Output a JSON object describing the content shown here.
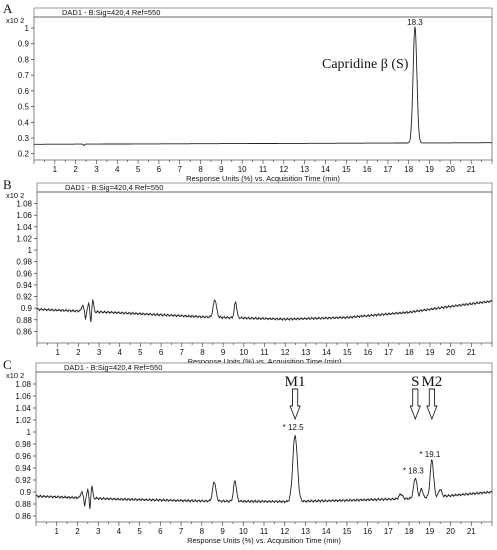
{
  "chart_data": [
    {
      "type": "line",
      "panel_label": "A",
      "header": "DAD1 - B:Sig=420,4  Ref=550",
      "y_unit": "x10 2",
      "xlabel": "Response Units (%) vs. Acquisition Time (min)",
      "xlim": [
        0,
        22
      ],
      "ylim": [
        0.16,
        1.07
      ],
      "x_ticks": [
        "1",
        "2",
        "3",
        "4",
        "5",
        "6",
        "7",
        "8",
        "9",
        "10",
        "11",
        "12",
        "13",
        "14",
        "15",
        "16",
        "17",
        "18",
        "19",
        "20",
        "21"
      ],
      "y_ticks": [
        "0.2",
        "0.3",
        "0.4",
        "0.5",
        "0.6",
        "0.7",
        "0.8",
        "0.9",
        "1"
      ],
      "baseline": 0.26,
      "baseline_end": 0.27,
      "dips": [
        [
          2.4,
          -0.008
        ]
      ],
      "peaks": [
        [
          18.3,
          0.74,
          0.09
        ]
      ],
      "peak_labels": [
        {
          "x": 18.3,
          "y": 1.0,
          "text": "18.3"
        }
      ],
      "annotation": "Capridine β (S)"
    },
    {
      "type": "line",
      "panel_label": "B",
      "header": "DAD1 - B:Sig=420,4  Ref=550",
      "y_unit": "x10 2",
      "xlabel": "Response Units (%) vs. Acquisition Time (min)",
      "xlim": [
        0,
        22
      ],
      "ylim": [
        0.84,
        1.1
      ],
      "x_ticks": [
        "1",
        "2",
        "3",
        "4",
        "5",
        "6",
        "7",
        "8",
        "9",
        "10",
        "11",
        "12",
        "13",
        "14",
        "15",
        "16",
        "17",
        "18",
        "19",
        "20",
        "21"
      ],
      "y_ticks": [
        "0.86",
        "0.88",
        "0.9",
        "0.92",
        "0.94",
        "0.96",
        "0.98",
        "1",
        "1.02",
        "1.04",
        "1.06",
        "1.08"
      ],
      "baseline_curve": [
        [
          0,
          0.898
        ],
        [
          4,
          0.892
        ],
        [
          8,
          0.885
        ],
        [
          12,
          0.881
        ],
        [
          15,
          0.884
        ],
        [
          18,
          0.893
        ],
        [
          20,
          0.903
        ],
        [
          22,
          0.912
        ]
      ],
      "peaks": [
        [
          2.2,
          0.01,
          0.05
        ],
        [
          2.5,
          0.015,
          0.04
        ],
        [
          2.7,
          0.02,
          0.04
        ],
        [
          8.6,
          0.03,
          0.08
        ],
        [
          9.6,
          0.027,
          0.06
        ]
      ],
      "dips": [
        [
          2.35,
          -0.012
        ],
        [
          2.6,
          -0.02
        ]
      ],
      "peak_labels": []
    },
    {
      "type": "line",
      "panel_label": "C",
      "header": "DAD1 - B:Sig=420,4  Ref=550",
      "y_unit": "x10 2",
      "xlabel": "Response Units (%) vs. Acquisition Time (min)",
      "xlim": [
        0,
        22
      ],
      "ylim": [
        0.85,
        1.1
      ],
      "x_ticks": [
        "1",
        "2",
        "3",
        "4",
        "5",
        "6",
        "7",
        "8",
        "9",
        "10",
        "11",
        "12",
        "13",
        "14",
        "15",
        "16",
        "17",
        "18",
        "19",
        "20",
        "21"
      ],
      "y_ticks": [
        "0.86",
        "0.88",
        "0.9",
        "0.92",
        "0.94",
        "0.96",
        "0.98",
        "1",
        "1.02",
        "1.04",
        "1.06",
        "1.08"
      ],
      "baseline_curve": [
        [
          0,
          0.893
        ],
        [
          4,
          0.888
        ],
        [
          8,
          0.885
        ],
        [
          12,
          0.884
        ],
        [
          15,
          0.886
        ],
        [
          18,
          0.889
        ],
        [
          20,
          0.894
        ],
        [
          22,
          0.9
        ]
      ],
      "peaks": [
        [
          2.2,
          0.01,
          0.05
        ],
        [
          2.5,
          0.015,
          0.04
        ],
        [
          2.7,
          0.02,
          0.04
        ],
        [
          8.6,
          0.032,
          0.08
        ],
        [
          9.6,
          0.034,
          0.07
        ],
        [
          12.5,
          0.11,
          0.11
        ],
        [
          17.6,
          0.008,
          0.08
        ],
        [
          18.3,
          0.034,
          0.08
        ],
        [
          18.6,
          0.015,
          0.06
        ],
        [
          19.1,
          0.062,
          0.08
        ],
        [
          19.5,
          0.012,
          0.07
        ]
      ],
      "dips": [
        [
          2.35,
          -0.012
        ],
        [
          2.6,
          -0.02
        ]
      ],
      "peak_labels": [
        {
          "x": 12.5,
          "y": 0.998,
          "text": "12.5"
        },
        {
          "x": 18.3,
          "y": 0.926,
          "text": "18.3"
        },
        {
          "x": 19.1,
          "y": 0.953,
          "text": "19.1"
        }
      ],
      "markers": [
        {
          "label": "M1",
          "x": 12.5
        },
        {
          "label": "S",
          "x": 18.3
        },
        {
          "label": "M2",
          "x": 19.1
        }
      ]
    }
  ]
}
